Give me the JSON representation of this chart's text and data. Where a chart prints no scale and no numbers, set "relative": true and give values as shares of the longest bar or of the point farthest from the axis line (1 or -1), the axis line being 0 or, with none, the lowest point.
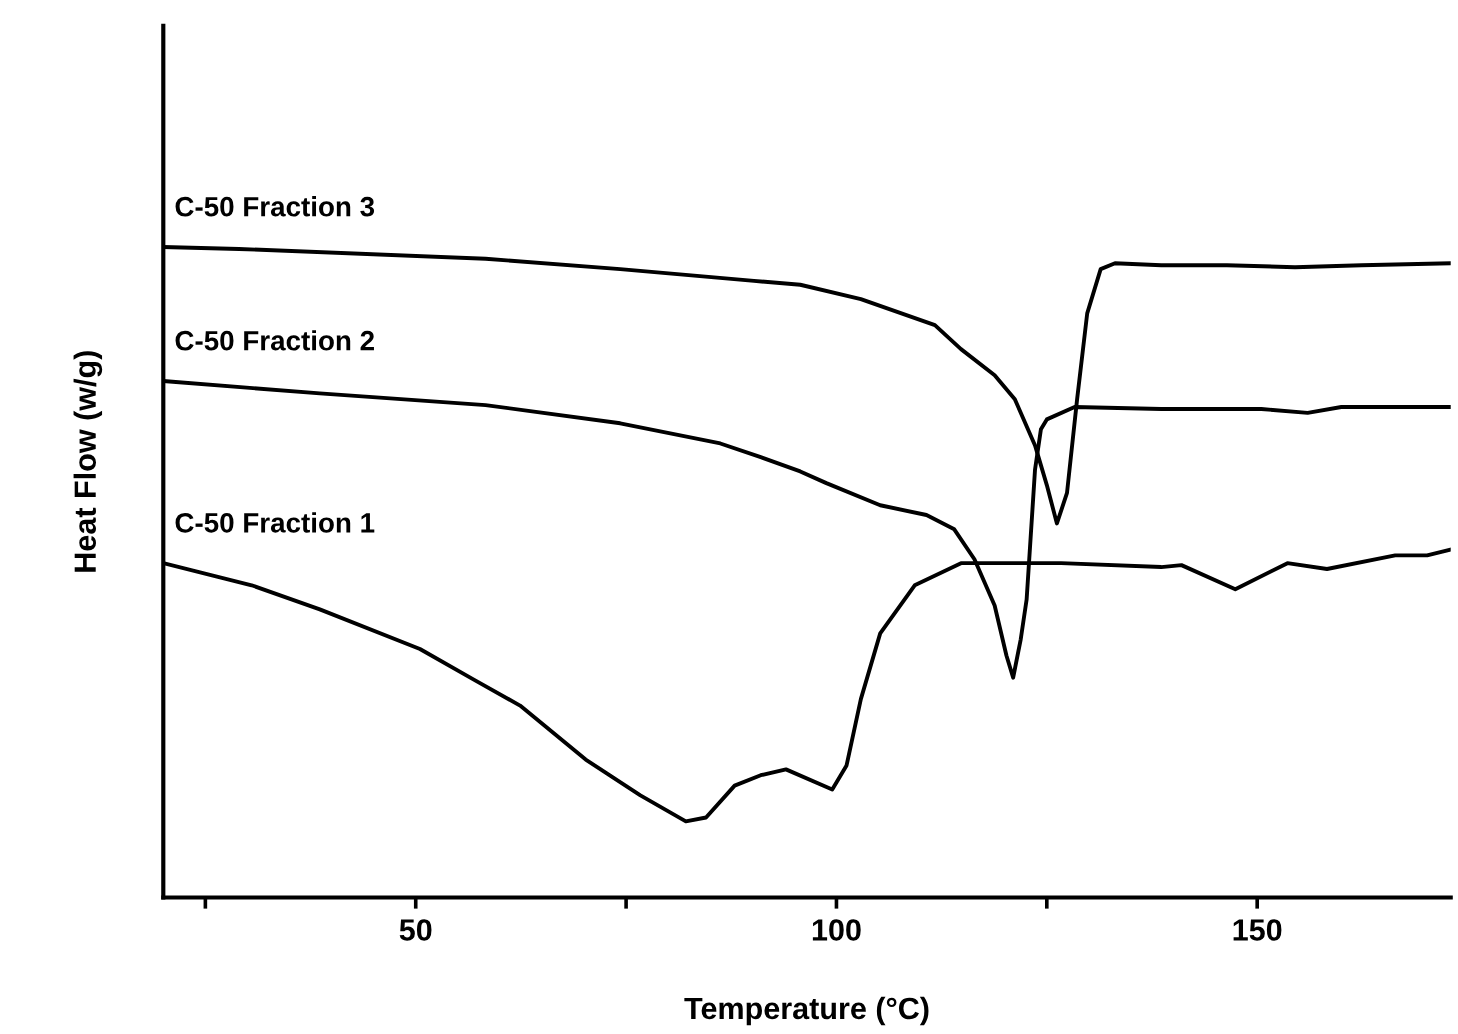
{
  "chart_data": {
    "type": "line",
    "relative": true,
    "xlabel": "Temperature (°C)",
    "ylabel": "Heat Flow (w/g)",
    "xlim": [
      20,
      173
    ],
    "xticks": [
      {
        "value": 25,
        "label": null
      },
      50,
      {
        "value": 75,
        "label": null
      },
      100,
      {
        "value": 125,
        "label": null
      },
      150
    ],
    "grid": false,
    "legend": false,
    "marker": "none",
    "line_style": "solid",
    "series": [
      {
        "name": "C-50 Fraction 3",
        "color": "#000000",
        "x": [
          20,
          29.0,
          58.3,
          74.3,
          90.2,
          95.7,
          102.9,
          111.7,
          114.8,
          118.8,
          121.2,
          123.6,
          125.0,
          126.2,
          127.4,
          128.6,
          129.8,
          131.4,
          133.1,
          138.6,
          146.4,
          154.5,
          162.4,
          173
        ],
        "values": [
          1.0,
          0.997,
          0.982,
          0.966,
          0.948,
          0.942,
          0.92,
          0.88,
          0.843,
          0.803,
          0.766,
          0.695,
          0.634,
          0.575,
          0.622,
          0.766,
          0.898,
          0.966,
          0.975,
          0.972,
          0.972,
          0.969,
          0.972,
          0.975
        ]
      },
      {
        "name": "C-50 Fraction 2",
        "color": "#000000",
        "x": [
          20,
          38.6,
          58.3,
          74.3,
          86.2,
          91.0,
          95.7,
          98.8,
          105.2,
          110.7,
          114.0,
          116.4,
          118.8,
          120.2,
          121.0,
          121.9,
          122.6,
          123.6,
          124.3,
          125.0,
          128.3,
          138.6,
          150.5,
          156.0,
          160.0,
          173
        ],
        "values": [
          0.794,
          0.775,
          0.757,
          0.729,
          0.698,
          0.677,
          0.655,
          0.637,
          0.603,
          0.588,
          0.566,
          0.52,
          0.449,
          0.372,
          0.338,
          0.397,
          0.458,
          0.658,
          0.72,
          0.735,
          0.754,
          0.751,
          0.751,
          0.745,
          0.754,
          0.754
        ]
      },
      {
        "name": "C-50 Fraction 1",
        "color": "#000000",
        "x": [
          20,
          30.5,
          38.6,
          50.5,
          56.9,
          62.4,
          70.2,
          76.7,
          82.1,
          84.5,
          87.9,
          91.0,
          94.0,
          99.5,
          101.2,
          102.9,
          105.2,
          109.3,
          114.8,
          126.7,
          138.6,
          141.0,
          147.4,
          153.6,
          158.3,
          166.4,
          170.2,
          173
        ],
        "values": [
          0.514,
          0.48,
          0.443,
          0.382,
          0.335,
          0.295,
          0.212,
          0.157,
          0.117,
          0.123,
          0.172,
          0.188,
          0.197,
          0.166,
          0.203,
          0.305,
          0.406,
          0.48,
          0.514,
          0.514,
          0.508,
          0.511,
          0.474,
          0.514,
          0.505,
          0.526,
          0.526,
          0.535
        ]
      }
    ]
  }
}
